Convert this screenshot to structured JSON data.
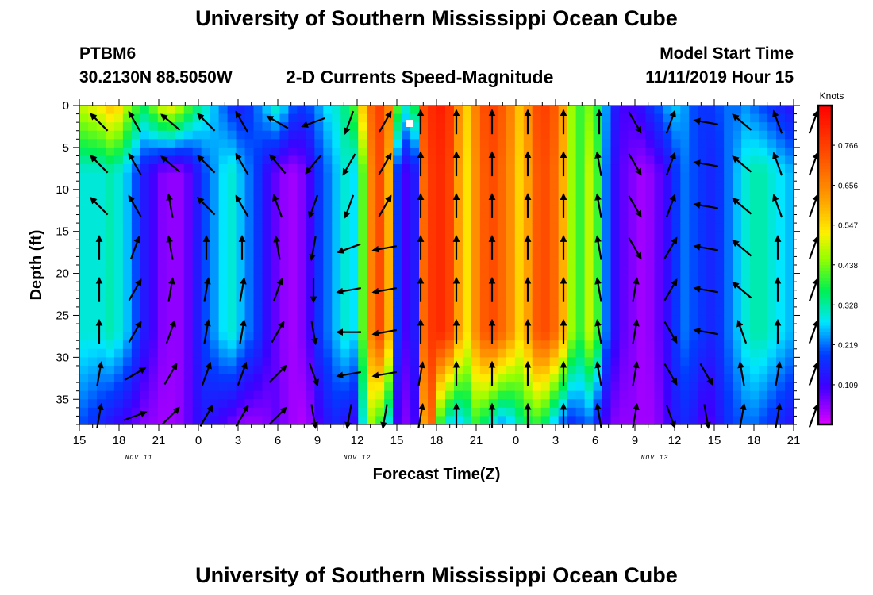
{
  "header": {
    "title_top": "University of Southern Mississippi Ocean Cube",
    "title_bottom": "University of Southern Mississippi Ocean Cube",
    "station": "PTBM6",
    "coords": "30.2130N 88.5050W",
    "subtitle": "2-D Currents Speed-Magnitude",
    "model_label": "Model Start Time",
    "model_time": "11/11/2019 Hour 15"
  },
  "chart_data": {
    "type": "heatmap",
    "title": "2-D Currents Speed-Magnitude",
    "xlabel": "Forecast Time(Z)",
    "ylabel": "Depth (ft)",
    "x_hours_from_start": [
      0,
      54
    ],
    "x_tick_labels": [
      "15",
      "18",
      "21",
      "0",
      "3",
      "6",
      "9",
      "12",
      "15",
      "18",
      "21",
      "0",
      "3",
      "6",
      "9",
      "12",
      "15",
      "18",
      "21"
    ],
    "date_labels": [
      "NOV 11",
      "NOV 12",
      "NOV 13"
    ],
    "y_ticks": [
      0,
      5,
      10,
      15,
      20,
      25,
      30,
      35
    ],
    "ylim": [
      0,
      38
    ],
    "y_inverted": true,
    "colorbar": {
      "unit_label": "Knots",
      "tick_labels": [
        "0.766",
        "0.656",
        "0.547",
        "0.438",
        "0.328",
        "0.219",
        "0.109"
      ],
      "range": [
        0.0,
        0.875
      ]
    },
    "speed_profile_by_column": [
      0.3,
      0.3,
      0.3,
      0.32,
      0.3,
      0.26,
      0.2,
      0.14,
      0.1,
      0.06,
      0.05,
      0.05,
      0.08,
      0.14,
      0.2,
      0.24,
      0.28,
      0.3,
      0.26,
      0.22,
      0.18,
      0.12,
      0.08,
      0.05,
      0.04,
      0.06,
      0.1,
      0.18,
      0.22,
      0.26,
      0.3,
      0.28,
      0.42,
      0.66,
      0.74,
      0.6,
      0.18,
      0.1,
      0.14,
      0.7,
      0.78,
      0.8,
      0.76,
      0.62,
      0.54,
      0.64,
      0.72,
      0.74,
      0.7,
      0.64,
      0.56,
      0.62,
      0.72,
      0.74,
      0.7,
      0.6,
      0.46,
      0.4,
      0.48,
      0.4,
      0.22,
      0.12,
      0.08,
      0.06,
      0.04,
      0.05,
      0.08,
      0.12,
      0.18,
      0.22,
      0.2,
      0.18,
      0.16,
      0.18,
      0.22,
      0.26,
      0.3,
      0.32,
      0.32,
      0.3,
      0.28,
      0.26
    ],
    "surface_speed_by_column": [
      0.48,
      0.5,
      0.52,
      0.56,
      0.54,
      0.46,
      0.4,
      0.36,
      0.42,
      0.48,
      0.5,
      0.46,
      0.4,
      0.34,
      0.3,
      0.26,
      0.22,
      0.18,
      0.16,
      0.18,
      0.22,
      0.26,
      0.3,
      0.26,
      0.2,
      0.18,
      0.2,
      0.24,
      0.28,
      0.3,
      0.34,
      0.4,
      0.56,
      0.7,
      0.76,
      0.66,
      0.4,
      0.3,
      0.36,
      0.74,
      0.8,
      0.82,
      0.78,
      0.64,
      0.56,
      0.66,
      0.74,
      0.76,
      0.72,
      0.66,
      0.58,
      0.64,
      0.74,
      0.76,
      0.72,
      0.62,
      0.46,
      0.4,
      0.44,
      0.38,
      0.24,
      0.14,
      0.1,
      0.1,
      0.12,
      0.16,
      0.2,
      0.24,
      0.26,
      0.24,
      0.2,
      0.18,
      0.18,
      0.2,
      0.22,
      0.22,
      0.24,
      0.22,
      0.2,
      0.18,
      0.16,
      0.14
    ],
    "bottom_speed_by_column": [
      0.2,
      0.18,
      0.16,
      0.14,
      0.12,
      0.1,
      0.08,
      0.06,
      0.05,
      0.04,
      0.04,
      0.05,
      0.08,
      0.12,
      0.14,
      0.12,
      0.1,
      0.08,
      0.06,
      0.05,
      0.05,
      0.06,
      0.08,
      0.06,
      0.04,
      0.03,
      0.05,
      0.1,
      0.14,
      0.16,
      0.14,
      0.12,
      0.3,
      0.46,
      0.4,
      0.3,
      0.1,
      0.06,
      0.1,
      0.62,
      0.7,
      0.4,
      0.3,
      0.28,
      0.32,
      0.4,
      0.36,
      0.3,
      0.26,
      0.28,
      0.34,
      0.38,
      0.4,
      0.36,
      0.28,
      0.22,
      0.18,
      0.2,
      0.22,
      0.16,
      0.1,
      0.06,
      0.05,
      0.05,
      0.04,
      0.04,
      0.06,
      0.1,
      0.14,
      0.16,
      0.14,
      0.1,
      0.1,
      0.14,
      0.18,
      0.2,
      0.22,
      0.22,
      0.2,
      0.18,
      0.16,
      0.14
    ],
    "vectors": [
      {
        "col": 0,
        "angles": [
          135,
          135,
          135,
          90,
          90,
          90,
          80,
          80
        ]
      },
      {
        "col": 1,
        "angles": [
          120,
          120,
          120,
          70,
          60,
          60,
          30,
          20
        ]
      },
      {
        "col": 2,
        "angles": [
          140,
          140,
          100,
          100,
          80,
          70,
          60,
          45
        ]
      },
      {
        "col": 3,
        "angles": [
          135,
          135,
          135,
          90,
          80,
          80,
          70,
          60
        ]
      },
      {
        "col": 4,
        "angles": [
          120,
          120,
          120,
          90,
          80,
          80,
          70,
          60
        ]
      },
      {
        "col": 5,
        "angles": [
          150,
          130,
          110,
          100,
          70,
          60,
          45,
          45
        ]
      },
      {
        "col": 6,
        "angles": [
          200,
          230,
          250,
          260,
          270,
          280,
          290,
          280
        ]
      },
      {
        "col": 7,
        "angles": [
          250,
          240,
          250,
          200,
          190,
          180,
          190,
          260
        ]
      },
      {
        "col": 8,
        "angles": [
          60,
          60,
          60,
          190,
          190,
          190,
          190,
          260
        ]
      },
      {
        "col": 9,
        "angles": [
          90,
          90,
          90,
          90,
          90,
          90,
          80,
          80
        ]
      },
      {
        "col": 10,
        "angles": [
          90,
          90,
          90,
          90,
          90,
          90,
          90,
          90
        ]
      },
      {
        "col": 11,
        "angles": [
          90,
          90,
          90,
          90,
          90,
          90,
          90,
          90
        ]
      },
      {
        "col": 12,
        "angles": [
          90,
          90,
          90,
          90,
          90,
          90,
          90,
          90
        ]
      },
      {
        "col": 13,
        "angles": [
          90,
          90,
          90,
          90,
          90,
          90,
          90,
          90
        ]
      },
      {
        "col": 14,
        "angles": [
          90,
          100,
          100,
          100,
          100,
          100,
          100,
          100
        ]
      },
      {
        "col": 15,
        "angles": [
          300,
          300,
          300,
          300,
          80,
          80,
          80,
          80
        ]
      },
      {
        "col": 16,
        "angles": [
          70,
          70,
          70,
          60,
          60,
          300,
          300,
          290
        ]
      },
      {
        "col": 17,
        "angles": [
          170,
          170,
          170,
          170,
          170,
          170,
          300,
          280
        ]
      },
      {
        "col": 18,
        "angles": [
          140,
          140,
          140,
          140,
          140,
          110,
          100,
          80
        ]
      },
      {
        "col": 19,
        "angles": [
          110,
          110,
          110,
          90,
          90,
          90,
          80,
          80
        ]
      },
      {
        "col": 20,
        "angles": [
          70,
          70,
          70,
          70,
          70,
          70,
          70,
          70
        ]
      }
    ]
  }
}
